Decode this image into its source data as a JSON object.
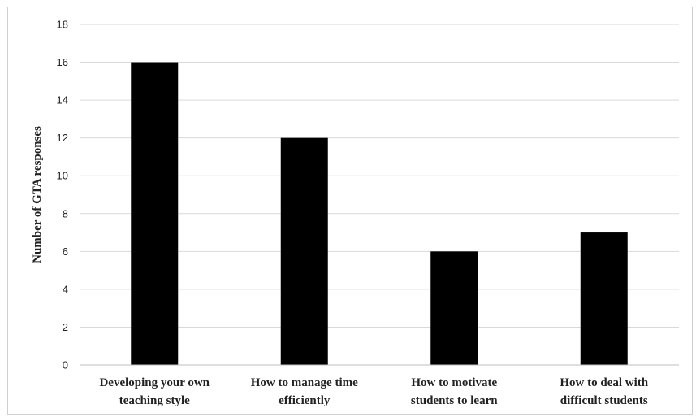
{
  "chart_data": {
    "type": "bar",
    "categories": [
      [
        "Developing your own",
        "teaching style"
      ],
      [
        "How to manage time",
        "efficiently"
      ],
      [
        "How to motivate",
        "students to learn"
      ],
      [
        "How to deal with",
        "difficult students"
      ]
    ],
    "values": [
      16,
      12,
      6,
      7
    ],
    "title": "",
    "xlabel": "",
    "ylabel": "Number of GTA responses",
    "ylim": [
      0,
      18
    ],
    "yticks": [
      0,
      2,
      4,
      6,
      8,
      10,
      12,
      14,
      16,
      18
    ],
    "grid": true,
    "legend": "none",
    "bar_color": "#000000",
    "grid_color": "#d9d9d9"
  }
}
